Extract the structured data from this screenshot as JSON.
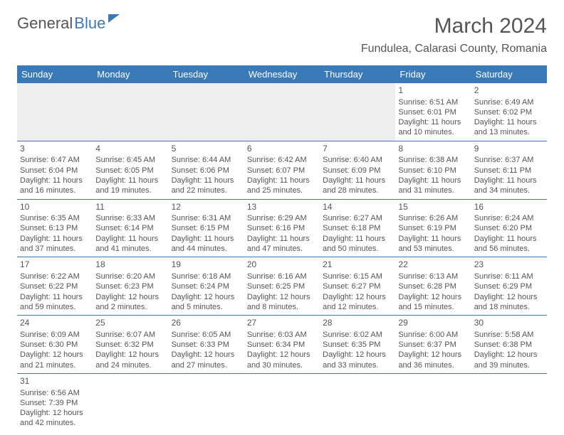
{
  "logo": {
    "part1": "General",
    "part2": "Blue"
  },
  "title": "March 2024",
  "location": "Fundulea, Calarasi County, Romania",
  "colors": {
    "header_bg": "#3b7ab8",
    "header_text": "#ffffff",
    "text": "#555555",
    "empty_bg": "#eeeeee",
    "border": "#3b7ab8"
  },
  "weekdays": [
    "Sunday",
    "Monday",
    "Tuesday",
    "Wednesday",
    "Thursday",
    "Friday",
    "Saturday"
  ],
  "weeks": [
    [
      {
        "blank": true
      },
      {
        "blank": true
      },
      {
        "blank": true
      },
      {
        "blank": true
      },
      {
        "blank": true
      },
      {
        "day": 1,
        "sunrise": "6:51 AM",
        "sunset": "6:01 PM",
        "daylight": "11 hours and 10 minutes."
      },
      {
        "day": 2,
        "sunrise": "6:49 AM",
        "sunset": "6:02 PM",
        "daylight": "11 hours and 13 minutes."
      }
    ],
    [
      {
        "day": 3,
        "sunrise": "6:47 AM",
        "sunset": "6:04 PM",
        "daylight": "11 hours and 16 minutes."
      },
      {
        "day": 4,
        "sunrise": "6:45 AM",
        "sunset": "6:05 PM",
        "daylight": "11 hours and 19 minutes."
      },
      {
        "day": 5,
        "sunrise": "6:44 AM",
        "sunset": "6:06 PM",
        "daylight": "11 hours and 22 minutes."
      },
      {
        "day": 6,
        "sunrise": "6:42 AM",
        "sunset": "6:07 PM",
        "daylight": "11 hours and 25 minutes."
      },
      {
        "day": 7,
        "sunrise": "6:40 AM",
        "sunset": "6:09 PM",
        "daylight": "11 hours and 28 minutes."
      },
      {
        "day": 8,
        "sunrise": "6:38 AM",
        "sunset": "6:10 PM",
        "daylight": "11 hours and 31 minutes."
      },
      {
        "day": 9,
        "sunrise": "6:37 AM",
        "sunset": "6:11 PM",
        "daylight": "11 hours and 34 minutes."
      }
    ],
    [
      {
        "day": 10,
        "sunrise": "6:35 AM",
        "sunset": "6:13 PM",
        "daylight": "11 hours and 37 minutes."
      },
      {
        "day": 11,
        "sunrise": "6:33 AM",
        "sunset": "6:14 PM",
        "daylight": "11 hours and 41 minutes."
      },
      {
        "day": 12,
        "sunrise": "6:31 AM",
        "sunset": "6:15 PM",
        "daylight": "11 hours and 44 minutes."
      },
      {
        "day": 13,
        "sunrise": "6:29 AM",
        "sunset": "6:16 PM",
        "daylight": "11 hours and 47 minutes."
      },
      {
        "day": 14,
        "sunrise": "6:27 AM",
        "sunset": "6:18 PM",
        "daylight": "11 hours and 50 minutes."
      },
      {
        "day": 15,
        "sunrise": "6:26 AM",
        "sunset": "6:19 PM",
        "daylight": "11 hours and 53 minutes."
      },
      {
        "day": 16,
        "sunrise": "6:24 AM",
        "sunset": "6:20 PM",
        "daylight": "11 hours and 56 minutes."
      }
    ],
    [
      {
        "day": 17,
        "sunrise": "6:22 AM",
        "sunset": "6:22 PM",
        "daylight": "11 hours and 59 minutes."
      },
      {
        "day": 18,
        "sunrise": "6:20 AM",
        "sunset": "6:23 PM",
        "daylight": "12 hours and 2 minutes."
      },
      {
        "day": 19,
        "sunrise": "6:18 AM",
        "sunset": "6:24 PM",
        "daylight": "12 hours and 5 minutes."
      },
      {
        "day": 20,
        "sunrise": "6:16 AM",
        "sunset": "6:25 PM",
        "daylight": "12 hours and 8 minutes."
      },
      {
        "day": 21,
        "sunrise": "6:15 AM",
        "sunset": "6:27 PM",
        "daylight": "12 hours and 12 minutes."
      },
      {
        "day": 22,
        "sunrise": "6:13 AM",
        "sunset": "6:28 PM",
        "daylight": "12 hours and 15 minutes."
      },
      {
        "day": 23,
        "sunrise": "6:11 AM",
        "sunset": "6:29 PM",
        "daylight": "12 hours and 18 minutes."
      }
    ],
    [
      {
        "day": 24,
        "sunrise": "6:09 AM",
        "sunset": "6:30 PM",
        "daylight": "12 hours and 21 minutes."
      },
      {
        "day": 25,
        "sunrise": "6:07 AM",
        "sunset": "6:32 PM",
        "daylight": "12 hours and 24 minutes."
      },
      {
        "day": 26,
        "sunrise": "6:05 AM",
        "sunset": "6:33 PM",
        "daylight": "12 hours and 27 minutes."
      },
      {
        "day": 27,
        "sunrise": "6:03 AM",
        "sunset": "6:34 PM",
        "daylight": "12 hours and 30 minutes."
      },
      {
        "day": 28,
        "sunrise": "6:02 AM",
        "sunset": "6:35 PM",
        "daylight": "12 hours and 33 minutes."
      },
      {
        "day": 29,
        "sunrise": "6:00 AM",
        "sunset": "6:37 PM",
        "daylight": "12 hours and 36 minutes."
      },
      {
        "day": 30,
        "sunrise": "5:58 AM",
        "sunset": "6:38 PM",
        "daylight": "12 hours and 39 minutes."
      }
    ],
    [
      {
        "day": 31,
        "sunrise": "6:56 AM",
        "sunset": "7:39 PM",
        "daylight": "12 hours and 42 minutes."
      },
      {
        "blank": true,
        "noborder": true
      },
      {
        "blank": true,
        "noborder": true
      },
      {
        "blank": true,
        "noborder": true
      },
      {
        "blank": true,
        "noborder": true
      },
      {
        "blank": true,
        "noborder": true
      },
      {
        "blank": true,
        "noborder": true
      }
    ]
  ]
}
